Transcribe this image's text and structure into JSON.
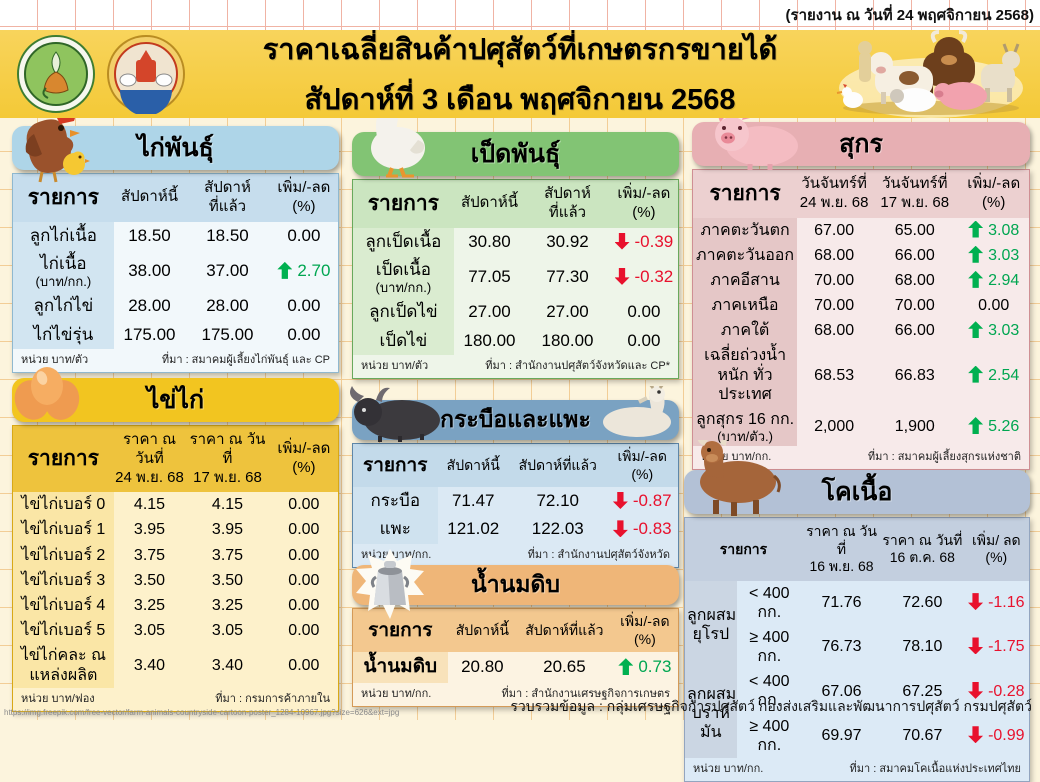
{
  "report_note": "(รายงาน ณ วันที่ 24 พฤศจิกายน 2568)",
  "header": {
    "title_line1": "ราคาเฉลี่ยสินค้าปศุสัตว์ที่เกษตรกรขายได้",
    "title_line2": "สัปดาห์ที่ 3 เดือน พฤศจิกายน 2568"
  },
  "bottom": {
    "image_credit_url": "https://img.freepik.com/free-vector/farm-animals-countryside-cartoon-poster_1284-10967.jpg?size=626&ext=jpg",
    "compiled_by": "รวบรวมข้อมูล : กลุ่มเศรษฐกิจการปศุสัตว์ กองส่งเสริมและพัฒนาการปศุสัตว์ กรมปศุสัตว์"
  },
  "status_colors": {
    "increase": "#00a651",
    "decrease": "#e8112d",
    "neutral": "#000000"
  },
  "tables": {
    "chicken": {
      "title": "ไก่พันธุ์",
      "colors": {
        "band": "#aed5e8",
        "head": "#c6dded",
        "lab": "#d2e5f1",
        "body": "#f2f8fb",
        "bord": "#8fb8cf"
      },
      "columns": [
        [
          "รายการ"
        ],
        [
          "สัปดาห์นี้"
        ],
        [
          "สัปดาห์",
          "ที่แล้ว"
        ],
        [
          "เพิ่ม/-ลด",
          "(%)"
        ]
      ],
      "rows": [
        {
          "label": "ลูกไก่เนื้อ",
          "cur": "18.50",
          "prev": "18.50",
          "dir": "none",
          "chg": "0.00"
        },
        {
          "label": "ไก่เนื้อ",
          "sublabel": "(บาท/กก.)",
          "cur": "38.00",
          "prev": "37.00",
          "dir": "up",
          "chg": "2.70"
        },
        {
          "label": "ลูกไก่ไข่",
          "cur": "28.00",
          "prev": "28.00",
          "dir": "none",
          "chg": "0.00"
        },
        {
          "label": "ไก่ไข่รุ่น",
          "cur": "175.00",
          "prev": "175.00",
          "dir": "none",
          "chg": "0.00"
        }
      ],
      "unit": "หน่วย บาท/ตัว",
      "source": "ที่มา : สมาคมผู้เลี้ยงไก่พันธุ์ และ CP"
    },
    "egg": {
      "title": "ไข่ไก่",
      "colors": {
        "band": "#f2c520",
        "head": "#eec33d",
        "lab": "#fae6a6",
        "body": "#fdf1cb",
        "bord": "#d8a816"
      },
      "columns": [
        [
          "รายการ"
        ],
        [
          "ราคา ณ วันที่",
          "24 พ.ย. 68"
        ],
        [
          "ราคา ณ วันที่",
          "17 พ.ย. 68"
        ],
        [
          "เพิ่ม/-ลด",
          "(%)"
        ]
      ],
      "rows": [
        {
          "label": "ไข่ไก่เบอร์ 0",
          "cur": "4.15",
          "prev": "4.15",
          "dir": "none",
          "chg": "0.00"
        },
        {
          "label": "ไข่ไก่เบอร์ 1",
          "cur": "3.95",
          "prev": "3.95",
          "dir": "none",
          "chg": "0.00"
        },
        {
          "label": "ไข่ไก่เบอร์ 2",
          "cur": "3.75",
          "prev": "3.75",
          "dir": "none",
          "chg": "0.00"
        },
        {
          "label": "ไข่ไก่เบอร์ 3",
          "cur": "3.50",
          "prev": "3.50",
          "dir": "none",
          "chg": "0.00"
        },
        {
          "label": "ไข่ไก่เบอร์ 4",
          "cur": "3.25",
          "prev": "3.25",
          "dir": "none",
          "chg": "0.00"
        },
        {
          "label": "ไข่ไก่เบอร์ 5",
          "cur": "3.05",
          "prev": "3.05",
          "dir": "none",
          "chg": "0.00"
        },
        {
          "label": "ไข่ไก่คละ ณ แหล่งผลิต",
          "cur": "3.40",
          "prev": "3.40",
          "dir": "none",
          "chg": "0.00"
        }
      ],
      "unit": "หน่วย บาท/ฟอง",
      "source": "ที่มา : กรมการค้าภายใน"
    },
    "duck": {
      "title": "เป็ดพันธุ์",
      "colors": {
        "band": "#82c474",
        "head": "#cbe5c0",
        "lab": "#daecd0",
        "body": "#eef5e9",
        "bord": "#69a95c"
      },
      "columns": [
        [
          "รายการ"
        ],
        [
          "สัปดาห์นี้"
        ],
        [
          "สัปดาห์",
          "ที่แล้ว"
        ],
        [
          "เพิ่ม/-ลด",
          "(%)"
        ]
      ],
      "rows": [
        {
          "label": "ลูกเป็ดเนื้อ",
          "cur": "30.80",
          "prev": "30.92",
          "dir": "down",
          "chg": "-0.39"
        },
        {
          "label": "เป็ดเนื้อ",
          "sublabel": "(บาท/กก.)",
          "cur": "77.05",
          "prev": "77.30",
          "dir": "down",
          "chg": "-0.32"
        },
        {
          "label": "ลูกเป็ดไข่",
          "cur": "27.00",
          "prev": "27.00",
          "dir": "none",
          "chg": "0.00"
        },
        {
          "label": "เป็ดไข่",
          "cur": "180.00",
          "prev": "180.00",
          "dir": "none",
          "chg": "0.00"
        }
      ],
      "unit": "หน่วย บาท/ตัว",
      "source": "ที่มา : สำนักงานปศุสัตว์จังหวัดและ CP*"
    },
    "buffalo": {
      "title": "กระบือและแพะ",
      "colors": {
        "band": "#7aa2c2",
        "head": "#c3daea",
        "lab": "#cfe2ef",
        "body": "#dbe9f4",
        "bord": "#5f87a8"
      },
      "columns": [
        [
          "รายการ"
        ],
        [
          "สัปดาห์นี้"
        ],
        [
          "สัปดาห์ที่แล้ว"
        ],
        [
          "เพิ่ม/-ลด (%)"
        ]
      ],
      "rows": [
        {
          "label": "กระบือ",
          "cur": "71.47",
          "prev": "72.10",
          "dir": "down",
          "chg": "-0.87"
        },
        {
          "label": "แพะ",
          "cur": "121.02",
          "prev": "122.03",
          "dir": "down",
          "chg": "-0.83"
        }
      ],
      "unit": "หน่วย บาท/กก.",
      "source": "ที่มา : สำนักงานปศุสัตว์จังหวัด"
    },
    "milk": {
      "title": "น้ำนมดิบ",
      "colors": {
        "band": "#efb678",
        "head": "#f3c88f",
        "lab": "#f8e2ba",
        "body": "#fcf3e2",
        "bord": "#d49a58"
      },
      "columns": [
        [
          "รายการ"
        ],
        [
          "สัปดาห์นี้"
        ],
        [
          "สัปดาห์ที่แล้ว"
        ],
        [
          "เพิ่ม/-ลด (%)"
        ]
      ],
      "rows": [
        {
          "label": "น้ำนมดิบ",
          "cur": "20.80",
          "prev": "20.65",
          "dir": "up",
          "chg": "0.73"
        }
      ],
      "unit": "หน่วย บาท/กก.",
      "source": "ที่มา : สำนักงานเศรษฐกิจการเกษตร"
    },
    "pig": {
      "title": "สุกร",
      "colors": {
        "band": "#e7afb3",
        "head": "#ecd0d0",
        "lab": "#e5c7c7",
        "body": "#f7eaea",
        "bord": "#cf8f94"
      },
      "columns": [
        [
          "รายการ"
        ],
        [
          "วันจันทร์ที่",
          "24 พ.ย. 68"
        ],
        [
          "วันจันทร์ที่",
          "17 พ.ย. 68"
        ],
        [
          "เพิ่ม/-ลด",
          "(%)"
        ]
      ],
      "rows": [
        {
          "label": "ภาคตะวันตก",
          "cur": "67.00",
          "prev": "65.00",
          "dir": "up",
          "chg": "3.08"
        },
        {
          "label": "ภาคตะวันออก",
          "cur": "68.00",
          "prev": "66.00",
          "dir": "up",
          "chg": "3.03"
        },
        {
          "label": "ภาคอีสาน",
          "cur": "70.00",
          "prev": "68.00",
          "dir": "up",
          "chg": "2.94"
        },
        {
          "label": "ภาคเหนือ",
          "cur": "70.00",
          "prev": "70.00",
          "dir": "none",
          "chg": "0.00"
        },
        {
          "label": "ภาคใต้",
          "cur": "68.00",
          "prev": "66.00",
          "dir": "up",
          "chg": "3.03"
        },
        {
          "label": "เฉลี่ยถ่วงน้ำหนัก ทั่วประเทศ",
          "cur": "68.53",
          "prev": "66.83",
          "dir": "up",
          "chg": "2.54"
        },
        {
          "label": "ลูกสุกร 16 กก.",
          "sublabel": "(บาท/ตัว.)",
          "cur": "2,000",
          "prev": "1,900",
          "dir": "up",
          "chg": "5.26"
        }
      ],
      "unit": "หน่วย บาท/กก.",
      "source": "ที่มา : สมาคมผู้เลี้ยงสุกรแห่งชาติ"
    },
    "beef": {
      "title": "โคเนื้อ",
      "colors": {
        "band": "#b3c1d6",
        "head": "#c3cfdf",
        "lab": "#cbd6e3",
        "body": "#dceaf6",
        "bord": "#93a5bf"
      },
      "columns": [
        [
          "รายการ"
        ],
        [
          "ราคา ณ วันที่",
          "16 พ.ย. 68"
        ],
        [
          "ราคา ณ วันที่",
          "16 ต.ค. 68"
        ],
        [
          "เพิ่ม/ ลด",
          "(%)"
        ]
      ],
      "groups": [
        {
          "label": "ลูกผสม ยุโรป",
          "rows": [
            {
              "sub": "< 400 กก.",
              "cur": "71.76",
              "prev": "72.60",
              "dir": "down",
              "chg": "-1.16"
            },
            {
              "sub": "≥ 400 กก.",
              "cur": "76.73",
              "prev": "78.10",
              "dir": "down",
              "chg": "-1.75"
            }
          ]
        },
        {
          "label": "ลูกผสม บราห์มัน",
          "rows": [
            {
              "sub": "< 400 กก.",
              "cur": "67.06",
              "prev": "67.25",
              "dir": "down",
              "chg": "-0.28"
            },
            {
              "sub": "≥ 400 กก.",
              "cur": "69.97",
              "prev": "70.67",
              "dir": "down",
              "chg": "-0.99"
            }
          ]
        }
      ],
      "unit": "หน่วย บาท/กก.",
      "source": "ที่มา : สมาคมโคเนื้อแห่งประเทศไทย"
    }
  }
}
